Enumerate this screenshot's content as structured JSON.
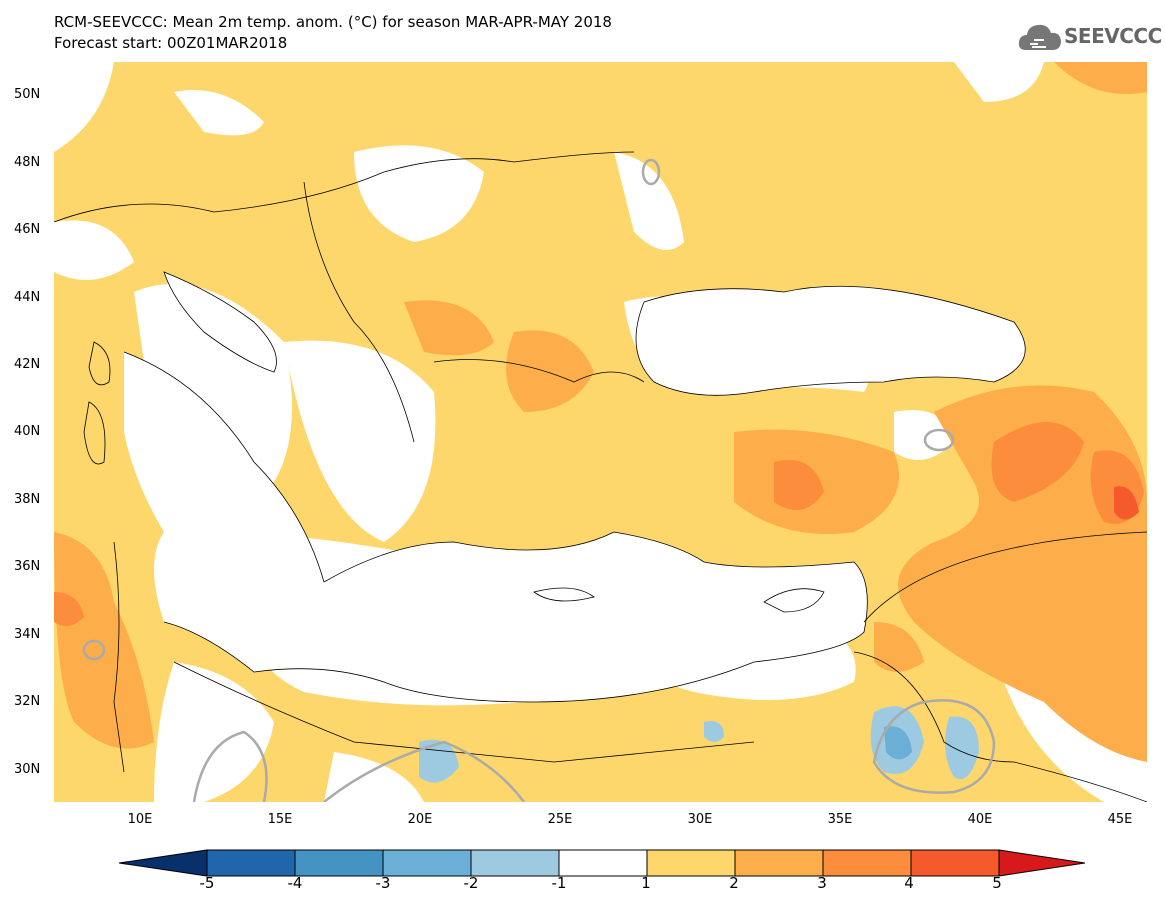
{
  "header": {
    "line1": "RCM-SEEVCCC: Mean 2m temp. anom. (°C) for season MAR-APR-MAY 2018",
    "line2": "Forecast start: 00Z01MAR2018",
    "logo_text": "SEEVCCC",
    "logo_icon": "cloud-icon"
  },
  "map": {
    "lat_labels": [
      "50N",
      "48N",
      "46N",
      "44N",
      "42N",
      "40N",
      "38N",
      "36N",
      "34N",
      "32N",
      "30N"
    ],
    "lon_labels": [
      "10E",
      "15E",
      "20E",
      "25E",
      "30E",
      "35E",
      "40E",
      "45E"
    ],
    "lon_range": [
      7,
      46
    ],
    "lat_range": [
      29,
      51
    ],
    "region": "Mediterranean / Black Sea / Middle East"
  },
  "colorbar": {
    "levels": [
      "-5",
      "-4",
      "-3",
      "-2",
      "-1",
      "1",
      "2",
      "3",
      "4",
      "5"
    ],
    "colors": [
      "#08306b",
      "#2166ac",
      "#4393c3",
      "#6baed6",
      "#9ecae1",
      "#ffffff",
      "#fdd76b",
      "#fdae4b",
      "#fc8d3c",
      "#f55a2c",
      "#d7191c"
    ]
  }
}
